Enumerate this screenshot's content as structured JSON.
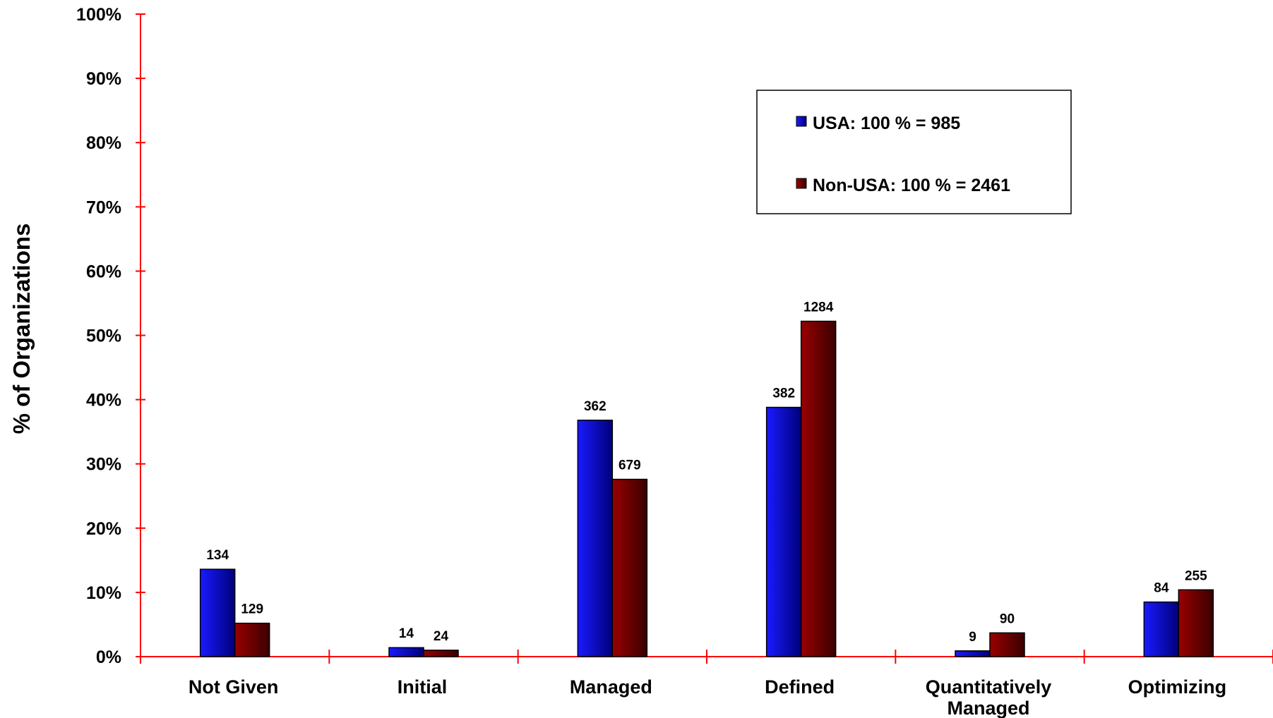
{
  "chart_data": {
    "type": "bar",
    "xlabel": "",
    "ylabel": "% of Organizations",
    "ylim": [
      0,
      100
    ],
    "y_ticks": [
      "0%",
      "10%",
      "20%",
      "30%",
      "40%",
      "50%",
      "60%",
      "70%",
      "80%",
      "90%",
      "100%"
    ],
    "categories": [
      [
        "Not Given"
      ],
      [
        "Initial"
      ],
      [
        "Managed"
      ],
      [
        "Defined"
      ],
      [
        "Quantitatively",
        "Managed"
      ],
      [
        "Optimizing"
      ]
    ],
    "series": [
      {
        "name": "USA: 100 % = 985",
        "color": "#1a1aff",
        "dark": "#00007a",
        "values": [
          13.6,
          1.4,
          36.8,
          38.8,
          0.9,
          8.5
        ],
        "labels": [
          "134",
          "14",
          "362",
          "382",
          "9",
          "84"
        ]
      },
      {
        "name": "Non-USA: 100 % = 2461",
        "color": "#990000",
        "dark": "#3a0000",
        "values": [
          5.2,
          1.0,
          27.6,
          52.2,
          3.7,
          10.4
        ],
        "labels": [
          "129",
          "24",
          "679",
          "1284",
          "90",
          "255"
        ]
      }
    ],
    "axis_color": "#ff0000",
    "legend_position": "top-right",
    "grid": false
  }
}
